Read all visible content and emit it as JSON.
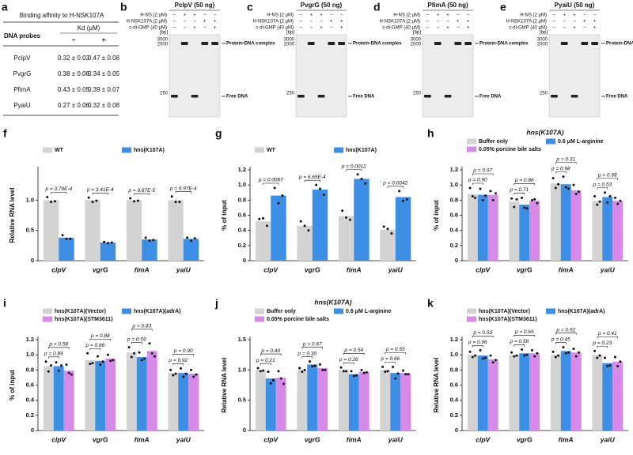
{
  "table": {
    "label": "a",
    "title": "Binding affinity to H-NSK107A",
    "header": [
      "DNA probes",
      "Kd (μM)"
    ],
    "subheader": [
      "−",
      "+"
    ],
    "rows": [
      [
        "PclpV",
        "0.32 ± 0.03",
        "0.47 ± 0.08"
      ],
      [
        "PvgrG",
        "0.38 ± 0.06",
        "0.34 ± 0.05"
      ],
      [
        "PfimA",
        "0.43 ± 0.05",
        "0.39 ± 0.07"
      ],
      [
        "PyaiU",
        "0.27 ± 0.06",
        "0.32 ± 0.08"
      ]
    ]
  },
  "gels": [
    {
      "label": "b",
      "title": "PclpV (50 ng)",
      "rows": [
        {
          "name": "H-NS (2 μM)",
          "signs": [
            "−",
            "+",
            "+",
            "−",
            "−"
          ]
        },
        {
          "name": "H-NSK107A (2 μM)",
          "signs": [
            "−",
            "−",
            "−",
            "+",
            "+"
          ]
        },
        {
          "name": "c-di-GMP (40 μM)",
          "signs": [
            "−",
            "−",
            "+",
            "−",
            "+"
          ]
        }
      ],
      "unit": "[bp]",
      "markers": [
        3000,
        2000,
        250
      ],
      "complex": "Protein-DNA complex",
      "free": "Free DNA"
    },
    {
      "label": "c",
      "title": "PvgrG (50 ng)",
      "rows": [
        {
          "name": "H-NS (2 μM)",
          "signs": [
            "−",
            "+",
            "+",
            "−",
            "−"
          ]
        },
        {
          "name": "H-NSK107A (2 μM)",
          "signs": [
            "−",
            "−",
            "−",
            "+",
            "+"
          ]
        },
        {
          "name": "c-di-GMP (40 μM)",
          "signs": [
            "−",
            "−",
            "+",
            "−",
            "+"
          ]
        }
      ],
      "unit": "[bp]",
      "markers": [
        3000,
        2000,
        250
      ],
      "complex": "Protein-DNA complex",
      "free": "Free DNA"
    },
    {
      "label": "d",
      "title": "PfimA (50 ng)",
      "rows": [
        {
          "name": "H-NS (2 μM)",
          "signs": [
            "−",
            "+",
            "+",
            "−",
            "−"
          ]
        },
        {
          "name": "H-NSK107A (2 μM)",
          "signs": [
            "−",
            "−",
            "−",
            "+",
            "+"
          ]
        },
        {
          "name": "c-di-GMP (40 μM)",
          "signs": [
            "−",
            "−",
            "+",
            "−",
            "+"
          ]
        }
      ],
      "unit": "[bp]",
      "markers": [
        3000,
        2000,
        250
      ],
      "complex": "Protein-DNA complex",
      "free": "Free DNA"
    },
    {
      "label": "e",
      "title": "PyaiU (50 ng)",
      "rows": [
        {
          "name": "H-NS (2 μM)",
          "signs": [
            "−",
            "+",
            "+",
            "−",
            "−"
          ]
        },
        {
          "name": "H-NSK107A (2 μM)",
          "signs": [
            "−",
            "−",
            "−",
            "+",
            "+"
          ]
        },
        {
          "name": "c-di-GMP (40 μM)",
          "signs": [
            "−",
            "−",
            "+",
            "−",
            "+"
          ]
        }
      ],
      "unit": "[bp]",
      "markers": [
        3000,
        2000,
        250
      ],
      "complex": "Protein-DNA complex",
      "free": "Free DNA"
    }
  ],
  "chart_data": [
    {
      "type": "bar",
      "label": "f",
      "ylabel": "Relative RNA level",
      "categories": [
        "clpV",
        "vgrG",
        "fimA",
        "yaiU"
      ],
      "ylim": [
        0,
        1.5
      ],
      "yticks": [
        0,
        0.5,
        {
          "value": 1,
          "label": "1.0"
        }
      ],
      "series": [
        {
          "name": "WT",
          "color": "#d3d3d3",
          "values": [
            1.0,
            1.0,
            1.0,
            1.0
          ],
          "points": [
            [
              1.05,
              0.97,
              0.98
            ],
            [
              1.04,
              0.97,
              0.99
            ],
            [
              1.03,
              0.98,
              0.99
            ],
            [
              1.06,
              0.97,
              0.97
            ]
          ]
        },
        {
          "name": "hns(K107A)",
          "color": "#3d8fe6",
          "values": [
            0.38,
            0.3,
            0.35,
            0.36
          ],
          "points": [
            [
              0.42,
              0.36,
              0.36
            ],
            [
              0.31,
              0.29,
              0.3
            ],
            [
              0.38,
              0.33,
              0.34
            ],
            [
              0.38,
              0.33,
              0.37
            ]
          ]
        }
      ],
      "p_labels": [
        [
          "p = 3.79E-4"
        ],
        [
          "p = 3.41E-4"
        ],
        [
          "p = 9.87E-5"
        ],
        [
          "p = 6.97E-4"
        ]
      ]
    },
    {
      "type": "bar",
      "label": "g",
      "ylabel": "% of input",
      "categories": [
        "clpV",
        "vgrG",
        "fimA",
        "yaiU"
      ],
      "ylim": [
        0,
        1.2
      ],
      "yticks": [
        0,
        0.2,
        0.4,
        0.6,
        0.8,
        {
          "value": 1,
          "label": "1.0"
        },
        1.2
      ],
      "series": [
        {
          "name": "WT",
          "color": "#d3d3d3",
          "values": [
            0.52,
            0.46,
            0.59,
            0.41
          ],
          "points": [
            [
              0.55,
              0.56,
              0.46
            ],
            [
              0.52,
              0.46,
              0.4
            ],
            [
              0.66,
              0.57,
              0.54
            ],
            [
              0.45,
              0.42,
              0.36
            ]
          ]
        },
        {
          "name": "hns(K107A)",
          "color": "#3d8fe6",
          "values": [
            0.86,
            0.94,
            1.08,
            0.84
          ],
          "points": [
            [
              0.96,
              0.76,
              0.86
            ],
            [
              1.0,
              0.95,
              0.87
            ],
            [
              1.14,
              1.08,
              1.02
            ],
            [
              0.92,
              0.79,
              0.81
            ]
          ]
        }
      ],
      "p_labels": [
        [
          "p = 0.0087"
        ],
        [
          "p = 6.65E-4"
        ],
        [
          "p = 0.0012"
        ],
        [
          "p = 0.0042"
        ]
      ]
    },
    {
      "type": "bar",
      "label": "h",
      "title": "hns(K107A)",
      "ylabel": "% of input",
      "categories": [
        "clpV",
        "vgrG",
        "fimA",
        "yaiU"
      ],
      "ylim": [
        0,
        1.2
      ],
      "yticks": [
        0,
        0.2,
        0.4,
        0.6,
        0.8,
        {
          "value": 1,
          "label": "1.0"
        },
        1.2
      ],
      "series": [
        {
          "name": "Buffer only",
          "color": "#d3d3d3",
          "values": [
            0.88,
            0.78,
            1.02,
            0.79
          ],
          "points": [
            [
              0.96,
              0.85,
              0.83
            ],
            [
              0.82,
              0.71,
              0.81
            ],
            [
              1.09,
              0.96,
              1.01
            ],
            [
              0.85,
              0.74,
              0.78
            ]
          ]
        },
        {
          "name": "0.6 μM L-arginine",
          "color": "#3d8fe6",
          "values": [
            0.87,
            0.74,
            1.01,
            0.84
          ],
          "points": [
            [
              0.95,
              0.8,
              0.86
            ],
            [
              0.83,
              0.7,
              0.69
            ],
            [
              1.11,
              0.97,
              0.95
            ],
            [
              0.9,
              0.77,
              0.85
            ]
          ]
        },
        {
          "name": "0.05% porcine bile salts",
          "color": "#d88ae9",
          "values": [
            0.87,
            0.79,
            0.93,
            0.79
          ],
          "points": [
            [
              0.92,
              0.8,
              0.89
            ],
            [
              0.8,
              0.81,
              0.76
            ],
            [
              1.0,
              0.88,
              0.91
            ],
            [
              0.83,
              0.75,
              0.79
            ]
          ]
        }
      ],
      "p_labels": [
        [
          "p = 0.90",
          "p = 0.97"
        ],
        [
          "p = 0.71",
          "p = 0.86"
        ],
        [
          "p = 0.98",
          "p = 0.31"
        ],
        [
          "p = 0.53",
          "p = 0.98"
        ]
      ]
    },
    {
      "type": "bar",
      "label": "i",
      "ylabel": "% of input",
      "categories": [
        "clpV",
        "vgrG",
        "fimA",
        "yaiU"
      ],
      "ylim": [
        0,
        1.2
      ],
      "yticks": [
        0,
        0.2,
        0.4,
        0.6,
        0.8,
        {
          "value": 1,
          "label": "1.0"
        },
        1.2
      ],
      "series": [
        {
          "name": "hns(K107A)(Vector)",
          "color": "#d3d3d3",
          "values": [
            0.85,
            0.93,
            1.03,
            0.76
          ],
          "points": [
            [
              0.91,
              0.78,
              0.86
            ],
            [
              1.02,
              0.88,
              0.89
            ],
            [
              1.1,
              0.97,
              1.02
            ],
            [
              0.8,
              0.73,
              0.75
            ]
          ]
        },
        {
          "name": "hns(K107A)(adrA)",
          "color": "#3d8fe6",
          "values": [
            0.85,
            0.92,
            0.97,
            0.76
          ],
          "points": [
            [
              0.9,
              0.79,
              0.86
            ],
            [
              0.98,
              0.87,
              0.91
            ],
            [
              1.03,
              0.93,
              0.95
            ],
            [
              0.82,
              0.71,
              0.75
            ]
          ]
        },
        {
          "name": "hns(K107A)(STM3611)",
          "color": "#d88ae9",
          "values": [
            0.79,
            0.95,
            1.05,
            0.75
          ],
          "points": [
            [
              0.87,
              0.76,
              0.74
            ],
            [
              1.0,
              0.92,
              0.93
            ],
            [
              1.15,
              1.02,
              0.98
            ],
            [
              0.8,
              0.71,
              0.74
            ]
          ]
        }
      ],
      "p_labels": [
        [
          "p = 0.89",
          "p = 0.58"
        ],
        [
          "p = 0.86",
          "p = 0.88"
        ],
        [
          "p = 0.59",
          "p = 0.83"
        ],
        [
          "p = 0.92",
          "p = 0.90"
        ]
      ]
    },
    {
      "type": "bar",
      "label": "j",
      "title": "hns(K107A)",
      "ylabel": "Relative RNA level",
      "categories": [
        "clpV",
        "vgrG",
        "fimA",
        "yaiU"
      ],
      "ylim": [
        0,
        1.5
      ],
      "yticks": [
        0,
        0.5,
        {
          "value": 1,
          "label": "1.0"
        },
        1.5
      ],
      "series": [
        {
          "name": "Buffer only",
          "color": "#d3d3d3",
          "values": [
            1.0,
            1.0,
            1.0,
            1.0
          ],
          "points": [
            [
              1.03,
              0.98,
              0.99
            ],
            [
              1.03,
              0.97,
              1.0
            ],
            [
              1.04,
              0.98,
              0.98
            ],
            [
              1.05,
              0.97,
              0.98
            ]
          ]
        },
        {
          "name": "0.6 μM L-arginine",
          "color": "#3d8fe6",
          "values": [
            0.86,
            1.09,
            0.93,
            0.95
          ],
          "points": [
            [
              0.97,
              0.78,
              0.83
            ],
            [
              1.14,
              1.06,
              1.07
            ],
            [
              0.98,
              0.9,
              0.91
            ],
            [
              1.05,
              0.86,
              0.94
            ]
          ]
        },
        {
          "name": "0.05% porcine bile salts",
          "color": "#d88ae9",
          "values": [
            0.87,
            1.03,
            0.97,
            0.95
          ],
          "points": [
            [
              0.98,
              0.86,
              0.77
            ],
            [
              1.09,
              1.0,
              1.0
            ],
            [
              1.0,
              0.95,
              0.96
            ],
            [
              0.99,
              0.93,
              0.93
            ]
          ]
        }
      ],
      "p_labels": [
        [
          "p = 0.21",
          "p = 0.40"
        ],
        [
          "p = 0.30",
          "p = 0.67"
        ],
        [
          "p = 0.26",
          "p = 0.54"
        ],
        [
          "p = 0.66",
          "p = 0.55"
        ]
      ]
    },
    {
      "type": "bar",
      "label": "k",
      "ylabel": "Relative RNA level",
      "categories": [
        "clpV",
        "vgrG",
        "fimA",
        "yaiU"
      ],
      "ylim": [
        0,
        1.2
      ],
      "yticks": [
        0,
        0.2,
        0.4,
        0.6,
        0.8,
        {
          "value": 1,
          "label": "1.0"
        },
        1.2
      ],
      "series": [
        {
          "name": "hns(K107A)(Vector)",
          "color": "#d3d3d3",
          "values": [
            1.0,
            1.0,
            1.0,
            1.0
          ],
          "points": [
            [
              1.04,
              0.97,
              0.99
            ],
            [
              1.03,
              0.98,
              0.99
            ],
            [
              1.04,
              0.97,
              0.99
            ],
            [
              1.05,
              0.96,
              0.99
            ]
          ]
        },
        {
          "name": "hns(K107A)(adrA)",
          "color": "#3d8fe6",
          "values": [
            0.99,
            1.02,
            1.05,
            0.89
          ],
          "points": [
            [
              1.06,
              0.95,
              0.96
            ],
            [
              1.07,
              0.99,
              1.0
            ],
            [
              1.1,
              1.02,
              1.03
            ],
            [
              0.96,
              0.85,
              0.86
            ]
          ]
        },
        {
          "name": "hns(K107A)(STM3611)",
          "color": "#d88ae9",
          "values": [
            0.94,
            1.02,
            1.03,
            0.91
          ],
          "points": [
            [
              0.99,
              0.9,
              0.93
            ],
            [
              1.06,
              0.98,
              1.02
            ],
            [
              1.08,
              0.98,
              1.03
            ],
            [
              0.97,
              0.85,
              0.91
            ]
          ]
        }
      ],
      "p_labels": [
        [
          "p = 0.96",
          "p = 0.53"
        ],
        [
          "p = 0.58",
          "p = 0.65"
        ],
        [
          "p = 0.45",
          "p = 0.92"
        ],
        [
          "p = 0.23",
          "p = 0.41"
        ]
      ]
    }
  ]
}
